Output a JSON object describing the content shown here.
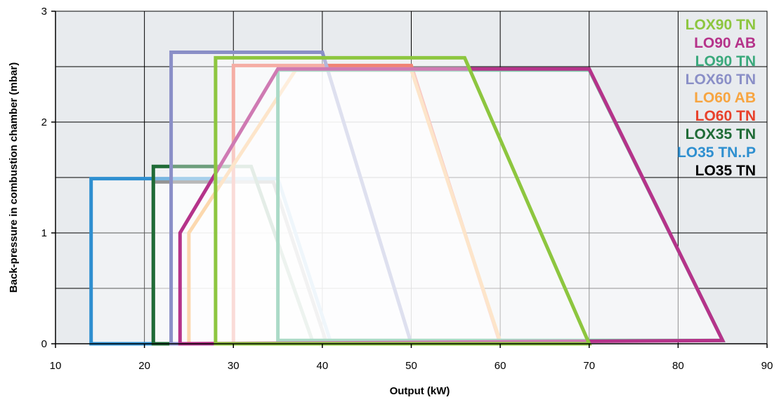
{
  "chart_data": {
    "type": "line",
    "title": "",
    "xlabel": "Output (kW)",
    "ylabel": "Back-pressure in combustion chamber (mbar)",
    "xlim": [
      10,
      90
    ],
    "ylim": [
      0,
      3
    ],
    "x_ticks": [
      "10",
      "20",
      "30",
      "40",
      "50",
      "60",
      "70",
      "80",
      "90"
    ],
    "y_ticks": [
      "0",
      "1",
      "2",
      "3"
    ],
    "grid": true,
    "legend_position": "top-right",
    "series": [
      {
        "name": "LOX90 TN",
        "color": "#8dc63f",
        "x": [
          28,
          28,
          56,
          70,
          28
        ],
        "y": [
          0,
          2.58,
          2.58,
          0,
          0
        ]
      },
      {
        "name": "LO90 AB",
        "color": "#b5338a",
        "x": [
          24,
          24,
          35,
          70,
          85,
          24
        ],
        "y": [
          0,
          1.0,
          2.48,
          2.48,
          0.03,
          0
        ]
      },
      {
        "name": "LO90 TN",
        "color": "#3aa97c",
        "x": [
          35,
          35,
          70,
          85,
          35
        ],
        "y": [
          0.03,
          2.47,
          2.47,
          0.03,
          0.03
        ]
      },
      {
        "name": "LOX60 TN",
        "color": "#8a8fc7",
        "x": [
          23,
          23,
          40,
          50,
          23
        ],
        "y": [
          0,
          2.63,
          2.63,
          0,
          0
        ]
      },
      {
        "name": "LO60 AB",
        "color": "#f7a541",
        "x": [
          25,
          25,
          37,
          50,
          60,
          25
        ],
        "y": [
          0,
          1.0,
          2.47,
          2.47,
          0.02,
          0
        ]
      },
      {
        "name": "LO60 TN",
        "color": "#e8412c",
        "x": [
          30,
          30,
          50,
          60,
          30
        ],
        "y": [
          0,
          2.51,
          2.51,
          0,
          0
        ]
      },
      {
        "name": "LOX35 TN",
        "color": "#1f6b36",
        "x": [
          21,
          21,
          32,
          39,
          21
        ],
        "y": [
          0,
          1.6,
          1.6,
          0,
          0
        ]
      },
      {
        "name": "LO35 TN..P",
        "color": "#2e8fd0",
        "x": [
          14,
          14,
          35,
          41,
          14
        ],
        "y": [
          0,
          1.49,
          1.49,
          0,
          0
        ]
      },
      {
        "name": "LO35 TN",
        "color": "#000000",
        "x": [
          21,
          21,
          34.5,
          40.5,
          21
        ],
        "y": [
          0,
          1.46,
          1.46,
          0,
          0
        ]
      }
    ]
  }
}
